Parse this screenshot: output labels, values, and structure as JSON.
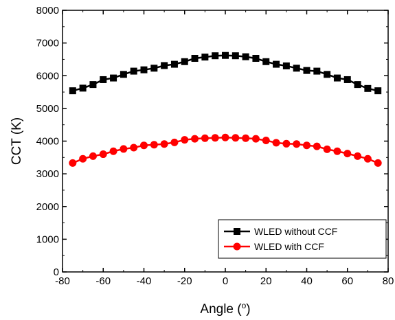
{
  "chart_data": {
    "type": "line",
    "xlabel": "Angle (",
    "xlabel_sup": "o",
    "xlabel_end": ")",
    "ylabel": "CCT (K)",
    "xlim": [
      -80,
      80
    ],
    "ylim": [
      0,
      8000
    ],
    "xticks": [
      -80,
      -60,
      -40,
      -20,
      0,
      20,
      40,
      60,
      80
    ],
    "yticks": [
      0,
      1000,
      2000,
      3000,
      4000,
      5000,
      6000,
      7000,
      8000
    ],
    "x": [
      -75,
      -70,
      -65,
      -60,
      -55,
      -50,
      -45,
      -40,
      -35,
      -30,
      -25,
      -20,
      -15,
      -10,
      -5,
      0,
      5,
      10,
      15,
      20,
      25,
      30,
      35,
      40,
      45,
      50,
      55,
      60,
      65,
      70,
      75
    ],
    "series": [
      {
        "name": "WLED without CCF",
        "marker": "square",
        "color": "#000000",
        "values": [
          5540,
          5620,
          5730,
          5880,
          5930,
          6040,
          6140,
          6180,
          6230,
          6310,
          6350,
          6430,
          6530,
          6570,
          6610,
          6620,
          6610,
          6580,
          6530,
          6430,
          6350,
          6300,
          6230,
          6160,
          6140,
          6040,
          5930,
          5880,
          5730,
          5610,
          5540
        ]
      },
      {
        "name": "WLED with CCF",
        "marker": "circle",
        "color": "#ff0000",
        "values": [
          3330,
          3460,
          3540,
          3600,
          3690,
          3760,
          3800,
          3870,
          3890,
          3910,
          3960,
          4040,
          4070,
          4090,
          4100,
          4110,
          4100,
          4090,
          4070,
          4020,
          3950,
          3920,
          3910,
          3870,
          3840,
          3750,
          3690,
          3620,
          3540,
          3460,
          3330
        ]
      }
    ],
    "grid": false,
    "legend_position": "bottom-right"
  }
}
